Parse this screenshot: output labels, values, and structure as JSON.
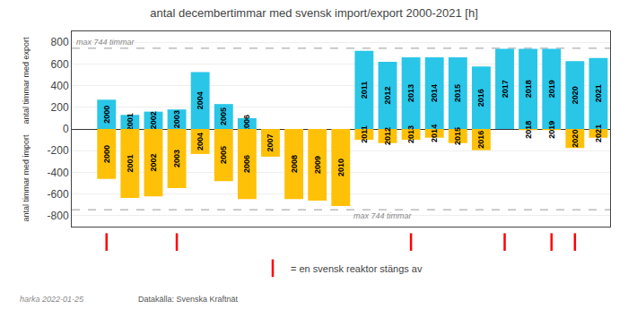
{
  "chart_data": {
    "type": "bar",
    "title": "antal decembertimmar med svensk import/export 2000-2021 [h]",
    "ylabels": [
      "antal timmar med export",
      "antal timmar med import"
    ],
    "categories": [
      "2000",
      "2001",
      "2002",
      "2003",
      "2004",
      "2005",
      "2006",
      "2007",
      "2008",
      "2009",
      "2010",
      "2011",
      "2012",
      "2013",
      "2014",
      "2015",
      "2016",
      "2017",
      "2018",
      "2019",
      "2020",
      "2021"
    ],
    "series": [
      {
        "color": "#29C6E8",
        "values": [
          270,
          130,
          160,
          180,
          525,
          230,
          100,
          0,
          0,
          0,
          0,
          720,
          620,
          660,
          660,
          660,
          575,
          740,
          740,
          740,
          625,
          655
        ]
      },
      {
        "color": "#FFC107",
        "values": [
          -460,
          -635,
          -620,
          -545,
          -230,
          -480,
          -645,
          -255,
          -645,
          -660,
          -710,
          -100,
          -130,
          -100,
          -80,
          -130,
          -195,
          0,
          -10,
          -10,
          -175,
          -80
        ]
      }
    ],
    "reference_lines": [
      {
        "y": 744,
        "label": "max 744 timmar"
      },
      {
        "y": -744,
        "label": "max 744 timmar"
      }
    ],
    "events": {
      "name": "= en svensk reaktor stängs av",
      "color": "#FF0000",
      "marker": "line",
      "categories": [
        "2000",
        "2003",
        "2013",
        "2017",
        "2019",
        "2020"
      ]
    },
    "ylim": [
      -900,
      900
    ],
    "yticks": [
      -800,
      -600,
      -400,
      -200,
      0,
      200,
      400,
      600,
      800
    ],
    "grid": true,
    "tick_labels": "y",
    "legend": "bottom",
    "footer": [
      "harka 2022-01-25",
      "Datakälla: Svenska Kraftnät"
    ]
  }
}
